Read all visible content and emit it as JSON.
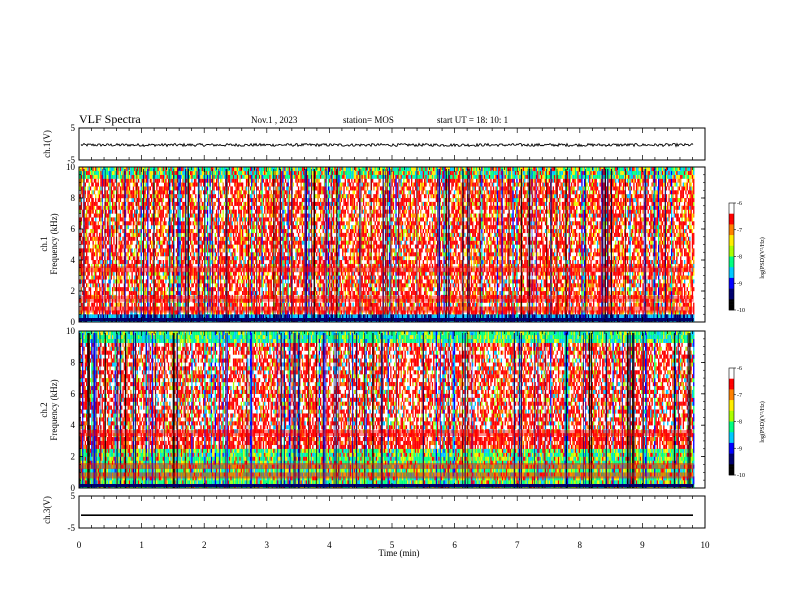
{
  "header": {
    "title": "VLF Spectra",
    "date": "Nov.1 , 2023",
    "station": "station= MOS",
    "start": "start UT = 18: 10: 1"
  },
  "colors": {
    "spectrum_palette": [
      "#000000",
      "#00006e",
      "#0000ff",
      "#00c8ff",
      "#00ff80",
      "#aaff00",
      "#ffee00",
      "#ff8000",
      "#ff0000",
      "#ffffff"
    ]
  },
  "chart_data": [
    {
      "type": "line",
      "panel": "ch1-waveform",
      "ylabel": "ch.1(V)",
      "ylim": [
        -5,
        5
      ],
      "yticks": [
        "5",
        "-5"
      ],
      "series": [
        {
          "values_note_free": true,
          "level": -0.3
        }
      ]
    },
    {
      "type": "heatmap",
      "panel": "ch1-spectrogram",
      "ylabel_line1": "ch.1",
      "ylabel_line2": "Frequency (kHz)",
      "ylim": [
        0,
        10
      ],
      "yticks": [
        "0",
        "2",
        "4",
        "6",
        "8",
        "10"
      ],
      "xlim": [
        0,
        10
      ],
      "colorbar": {
        "label": "log(PSD)(V²/Hz)",
        "range": [
          -10,
          -6
        ],
        "ticks": [
          "-6",
          "-7",
          "-8",
          "-9",
          "-10"
        ]
      }
    },
    {
      "type": "heatmap",
      "panel": "ch2-spectrogram",
      "ylabel_line1": "ch.2",
      "ylabel_line2": "Frequency (kHz)",
      "ylim": [
        0,
        10
      ],
      "yticks": [
        "0",
        "2",
        "4",
        "6",
        "8",
        "10"
      ],
      "xlim": [
        0,
        10
      ],
      "colorbar": {
        "label": "log(PSD)(V²/Hz)",
        "range": [
          -10,
          -6
        ],
        "ticks": [
          "-6",
          "-7",
          "-8",
          "-9",
          "-10"
        ]
      }
    },
    {
      "type": "line",
      "panel": "ch3-waveform",
      "ylabel": "ch.3(V)",
      "ylim": [
        -5,
        5
      ],
      "yticks": [
        "5",
        "-5"
      ],
      "series": [
        {
          "level": -1.0
        }
      ]
    }
  ],
  "xaxis": {
    "label": "Time (min)",
    "ticks": [
      "0",
      "1",
      "2",
      "3",
      "4",
      "5",
      "6",
      "7",
      "8",
      "9",
      "10"
    ],
    "data_end_min": 9.82
  }
}
